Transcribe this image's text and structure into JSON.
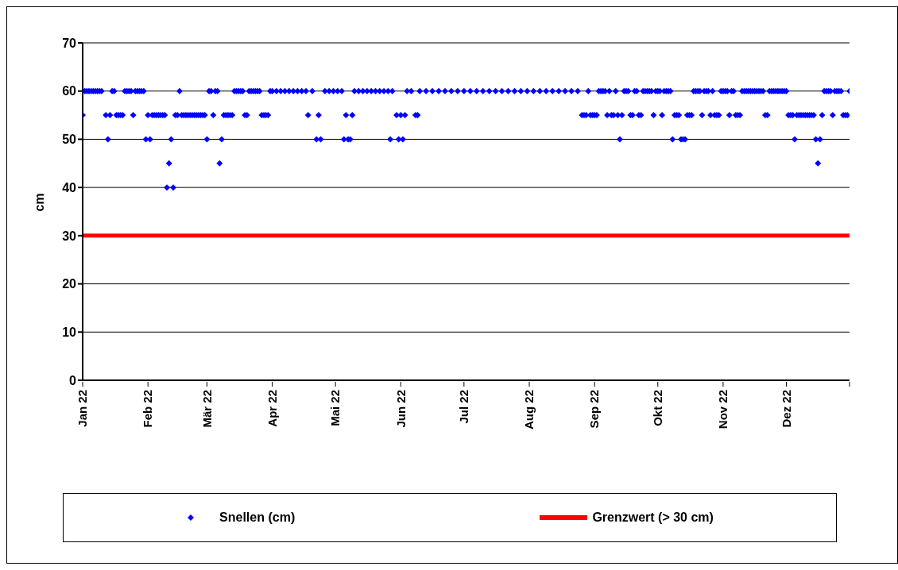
{
  "chart_data": {
    "type": "scatter",
    "ylabel": "cm",
    "xlim": [
      "2022-01-01",
      "2022-12-31"
    ],
    "xticks": [
      {
        "value": "2022-01-01",
        "label": "Jan 22"
      },
      {
        "value": "2022-02-01",
        "label": "Feb 22"
      },
      {
        "value": "2022-03-01",
        "label": "Mär 22"
      },
      {
        "value": "2022-04-01",
        "label": "Apr 22"
      },
      {
        "value": "2022-05-01",
        "label": "Mai 22"
      },
      {
        "value": "2022-06-01",
        "label": "Jun 22"
      },
      {
        "value": "2022-07-01",
        "label": "Jul 22"
      },
      {
        "value": "2022-08-01",
        "label": "Aug 22"
      },
      {
        "value": "2022-09-01",
        "label": "Sep 22"
      },
      {
        "value": "2022-10-01",
        "label": "Okt 22"
      },
      {
        "value": "2022-11-01",
        "label": "Nov 22"
      },
      {
        "value": "2022-12-01",
        "label": "Dez 22"
      },
      {
        "value": "2022-12-31",
        "label": null
      }
    ],
    "ylim": [
      0,
      70
    ],
    "yticks": [
      0,
      10,
      20,
      30,
      40,
      50,
      60,
      70
    ],
    "grid": "y",
    "legend": "bottom",
    "marker": "diamond",
    "ref_lines": [
      {
        "axis": "y",
        "value": 30,
        "label": "Grenzwert (> 30 cm)",
        "color": "#ff0000"
      }
    ],
    "series": [
      {
        "name": "Snellen (cm)",
        "color": "#0000ff",
        "x": [
          "2022-01-01",
          "2022-01-02",
          "2022-01-03",
          "2022-01-04",
          "2022-01-05",
          "2022-01-06",
          "2022-01-07",
          "2022-01-08",
          "2022-01-09",
          "2022-01-10",
          "2022-01-12",
          "2022-01-13",
          "2022-01-14",
          "2022-01-15",
          "2022-01-16",
          "2022-01-17",
          "2022-01-18",
          "2022-01-19",
          "2022-01-20",
          "2022-01-21",
          "2022-01-22",
          "2022-01-23",
          "2022-01-24",
          "2022-01-25",
          "2022-01-26",
          "2022-01-27",
          "2022-01-28",
          "2022-01-29",
          "2022-01-30",
          "2022-01-31",
          "2022-02-01",
          "2022-02-02",
          "2022-02-03",
          "2022-02-04",
          "2022-02-05",
          "2022-02-06",
          "2022-02-07",
          "2022-02-08",
          "2022-02-09",
          "2022-02-10",
          "2022-02-11",
          "2022-02-12",
          "2022-02-13",
          "2022-02-14",
          "2022-02-15",
          "2022-02-16",
          "2022-02-17",
          "2022-02-18",
          "2022-02-19",
          "2022-02-20",
          "2022-02-21",
          "2022-02-22",
          "2022-02-23",
          "2022-02-24",
          "2022-02-25",
          "2022-02-26",
          "2022-02-27",
          "2022-02-28",
          "2022-03-01",
          "2022-03-02",
          "2022-03-03",
          "2022-03-04",
          "2022-03-05",
          "2022-03-06",
          "2022-03-07",
          "2022-03-08",
          "2022-03-09",
          "2022-03-10",
          "2022-03-11",
          "2022-03-12",
          "2022-03-13",
          "2022-03-14",
          "2022-03-15",
          "2022-03-16",
          "2022-03-17",
          "2022-03-18",
          "2022-03-19",
          "2022-03-20",
          "2022-03-21",
          "2022-03-22",
          "2022-03-23",
          "2022-03-24",
          "2022-03-25",
          "2022-03-26",
          "2022-03-27",
          "2022-03-28",
          "2022-03-29",
          "2022-03-30",
          "2022-03-31",
          "2022-04-01",
          "2022-04-03",
          "2022-04-05",
          "2022-04-07",
          "2022-04-09",
          "2022-04-11",
          "2022-04-13",
          "2022-04-15",
          "2022-04-17",
          "2022-04-18",
          "2022-04-20",
          "2022-04-22",
          "2022-04-23",
          "2022-04-24",
          "2022-04-26",
          "2022-04-28",
          "2022-04-30",
          "2022-05-02",
          "2022-05-04",
          "2022-05-05",
          "2022-05-06",
          "2022-05-07",
          "2022-05-08",
          "2022-05-09",
          "2022-05-10",
          "2022-05-12",
          "2022-05-14",
          "2022-05-16",
          "2022-05-18",
          "2022-05-20",
          "2022-05-22",
          "2022-05-24",
          "2022-05-26",
          "2022-05-27",
          "2022-05-28",
          "2022-05-30",
          "2022-05-31",
          "2022-06-01",
          "2022-06-02",
          "2022-06-03",
          "2022-06-04",
          "2022-06-06",
          "2022-06-08",
          "2022-06-09",
          "2022-06-10",
          "2022-06-13",
          "2022-06-16",
          "2022-06-19",
          "2022-06-22",
          "2022-06-25",
          "2022-06-28",
          "2022-07-01",
          "2022-07-04",
          "2022-07-07",
          "2022-07-10",
          "2022-07-13",
          "2022-07-16",
          "2022-07-19",
          "2022-07-22",
          "2022-07-25",
          "2022-07-28",
          "2022-07-31",
          "2022-08-03",
          "2022-08-06",
          "2022-08-09",
          "2022-08-12",
          "2022-08-15",
          "2022-08-18",
          "2022-08-21",
          "2022-08-24",
          "2022-08-26",
          "2022-08-27",
          "2022-08-28",
          "2022-08-29",
          "2022-08-30",
          "2022-08-31",
          "2022-09-01",
          "2022-09-02",
          "2022-09-03",
          "2022-09-04",
          "2022-09-05",
          "2022-09-06",
          "2022-09-07",
          "2022-09-08",
          "2022-09-09",
          "2022-09-10",
          "2022-09-11",
          "2022-09-12",
          "2022-09-13",
          "2022-09-14",
          "2022-09-15",
          "2022-09-16",
          "2022-09-17",
          "2022-09-18",
          "2022-09-19",
          "2022-09-20",
          "2022-09-21",
          "2022-09-22",
          "2022-09-23",
          "2022-09-24",
          "2022-09-25",
          "2022-09-26",
          "2022-09-27",
          "2022-09-28",
          "2022-09-29",
          "2022-09-30",
          "2022-10-01",
          "2022-10-02",
          "2022-10-03",
          "2022-10-04",
          "2022-10-05",
          "2022-10-06",
          "2022-10-07",
          "2022-10-08",
          "2022-10-09",
          "2022-10-10",
          "2022-10-11",
          "2022-10-12",
          "2022-10-13",
          "2022-10-14",
          "2022-10-15",
          "2022-10-16",
          "2022-10-17",
          "2022-10-18",
          "2022-10-19",
          "2022-10-20",
          "2022-10-21",
          "2022-10-22",
          "2022-10-23",
          "2022-10-24",
          "2022-10-25",
          "2022-10-26",
          "2022-10-27",
          "2022-10-28",
          "2022-10-29",
          "2022-10-30",
          "2022-10-31",
          "2022-11-01",
          "2022-11-02",
          "2022-11-03",
          "2022-11-04",
          "2022-11-05",
          "2022-11-06",
          "2022-11-07",
          "2022-11-08",
          "2022-11-09",
          "2022-11-10",
          "2022-11-11",
          "2022-11-12",
          "2022-11-13",
          "2022-11-14",
          "2022-11-15",
          "2022-11-16",
          "2022-11-17",
          "2022-11-18",
          "2022-11-19",
          "2022-11-20",
          "2022-11-21",
          "2022-11-22",
          "2022-11-23",
          "2022-11-24",
          "2022-11-25",
          "2022-11-26",
          "2022-11-27",
          "2022-11-28",
          "2022-11-29",
          "2022-11-30",
          "2022-12-01",
          "2022-12-02",
          "2022-12-03",
          "2022-12-04",
          "2022-12-05",
          "2022-12-06",
          "2022-12-07",
          "2022-12-08",
          "2022-12-09",
          "2022-12-10",
          "2022-12-11",
          "2022-12-12",
          "2022-12-13",
          "2022-12-14",
          "2022-12-15",
          "2022-12-16",
          "2022-12-17",
          "2022-12-18",
          "2022-12-19",
          "2022-12-20",
          "2022-12-21",
          "2022-12-22",
          "2022-12-23",
          "2022-12-24",
          "2022-12-25",
          "2022-12-26",
          "2022-12-27",
          "2022-12-28",
          "2022-12-29",
          "2022-12-30",
          "2022-12-31"
        ],
        "values": [
          55,
          60,
          60,
          60,
          60,
          60,
          60,
          60,
          60,
          60,
          55,
          50,
          55,
          60,
          60,
          55,
          55,
          55,
          55,
          60,
          60,
          60,
          60,
          55,
          60,
          60,
          60,
          60,
          60,
          50,
          55,
          50,
          55,
          55,
          55,
          55,
          55,
          55,
          55,
          40,
          45,
          50,
          40,
          55,
          55,
          60,
          55,
          55,
          55,
          55,
          55,
          55,
          55,
          55,
          55,
          55,
          55,
          55,
          50,
          60,
          60,
          55,
          60,
          60,
          45,
          50,
          55,
          55,
          55,
          55,
          55,
          60,
          60,
          60,
          60,
          60,
          55,
          55,
          60,
          60,
          60,
          60,
          60,
          60,
          55,
          55,
          55,
          55,
          60,
          60,
          60,
          60,
          60,
          60,
          60,
          60,
          60,
          60,
          55,
          60,
          50,
          55,
          50,
          60,
          60,
          60,
          60,
          60,
          50,
          55,
          50,
          50,
          55,
          60,
          60,
          60,
          60,
          60,
          60,
          60,
          60,
          60,
          50,
          60,
          55,
          50,
          55,
          50,
          55,
          60,
          60,
          55,
          55,
          60,
          60,
          60,
          60,
          60,
          60,
          60,
          60,
          60,
          60,
          60,
          60,
          60,
          60,
          60,
          60,
          60,
          60,
          60,
          60,
          60,
          60,
          60,
          60,
          60,
          60,
          55,
          55,
          55,
          60,
          55,
          55,
          55,
          55,
          60,
          60,
          60,
          60,
          55,
          60,
          55,
          55,
          60,
          55,
          50,
          55,
          60,
          60,
          60,
          55,
          55,
          60,
          60,
          55,
          55,
          60,
          60,
          60,
          60,
          60,
          55,
          60,
          60,
          60,
          55,
          60,
          60,
          60,
          60,
          50,
          55,
          55,
          55,
          50,
          50,
          50,
          55,
          55,
          55,
          60,
          60,
          60,
          60,
          55,
          60,
          60,
          60,
          55,
          60,
          55,
          55,
          55,
          60,
          60,
          60,
          60,
          55,
          60,
          60,
          55,
          55,
          55,
          60,
          60,
          60,
          60,
          60,
          60,
          60,
          60,
          60,
          60,
          60,
          55,
          55,
          60,
          60,
          60,
          60,
          60,
          60,
          60,
          60,
          60,
          55,
          55,
          55,
          50,
          55,
          55,
          55,
          55,
          55,
          55,
          55,
          55,
          55,
          50,
          45,
          50,
          55,
          60,
          60,
          60,
          60,
          55,
          60,
          60,
          60,
          60,
          55,
          55,
          55,
          60
        ]
      }
    ]
  }
}
